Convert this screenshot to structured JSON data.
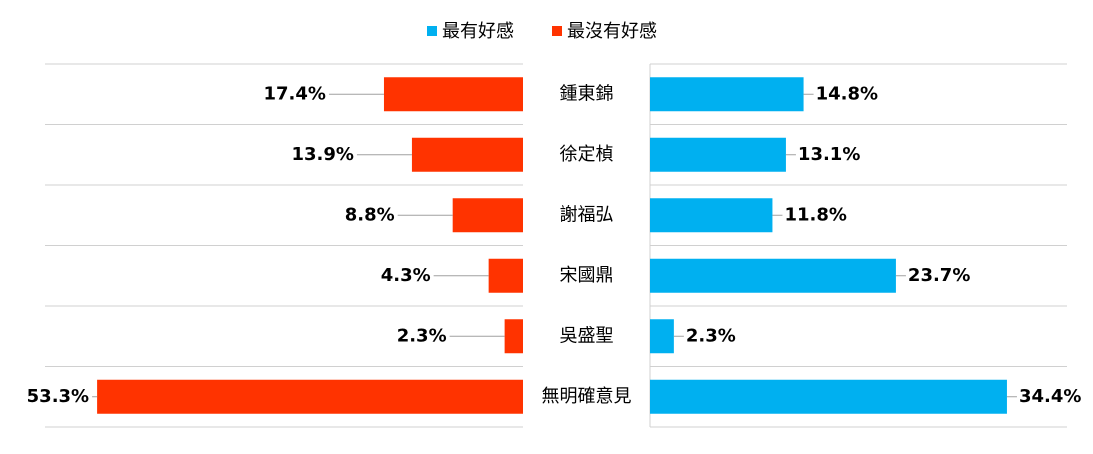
{
  "chart_data": {
    "type": "butterfly-bar",
    "categories": [
      "鍾東錦",
      "徐定楨",
      "謝福弘",
      "宋國鼎",
      "吳盛聖",
      "無明確意見"
    ],
    "series": [
      {
        "name": "最有好感",
        "color": "#00b0f0",
        "values": [
          14.8,
          13.1,
          11.8,
          23.7,
          2.3,
          34.4
        ],
        "value_labels": [
          "14.8%",
          "13.1%",
          "11.8%",
          "23.7%",
          "2.3%",
          "34.4%"
        ]
      },
      {
        "name": "最沒有好感",
        "color": "#ff3300",
        "values": [
          17.4,
          13.9,
          8.8,
          4.3,
          2.3,
          53.3
        ],
        "value_labels": [
          "17.4%",
          "13.9%",
          "8.8%",
          "4.3%",
          "2.3%",
          "53.3%"
        ]
      }
    ],
    "legend": "top"
  }
}
